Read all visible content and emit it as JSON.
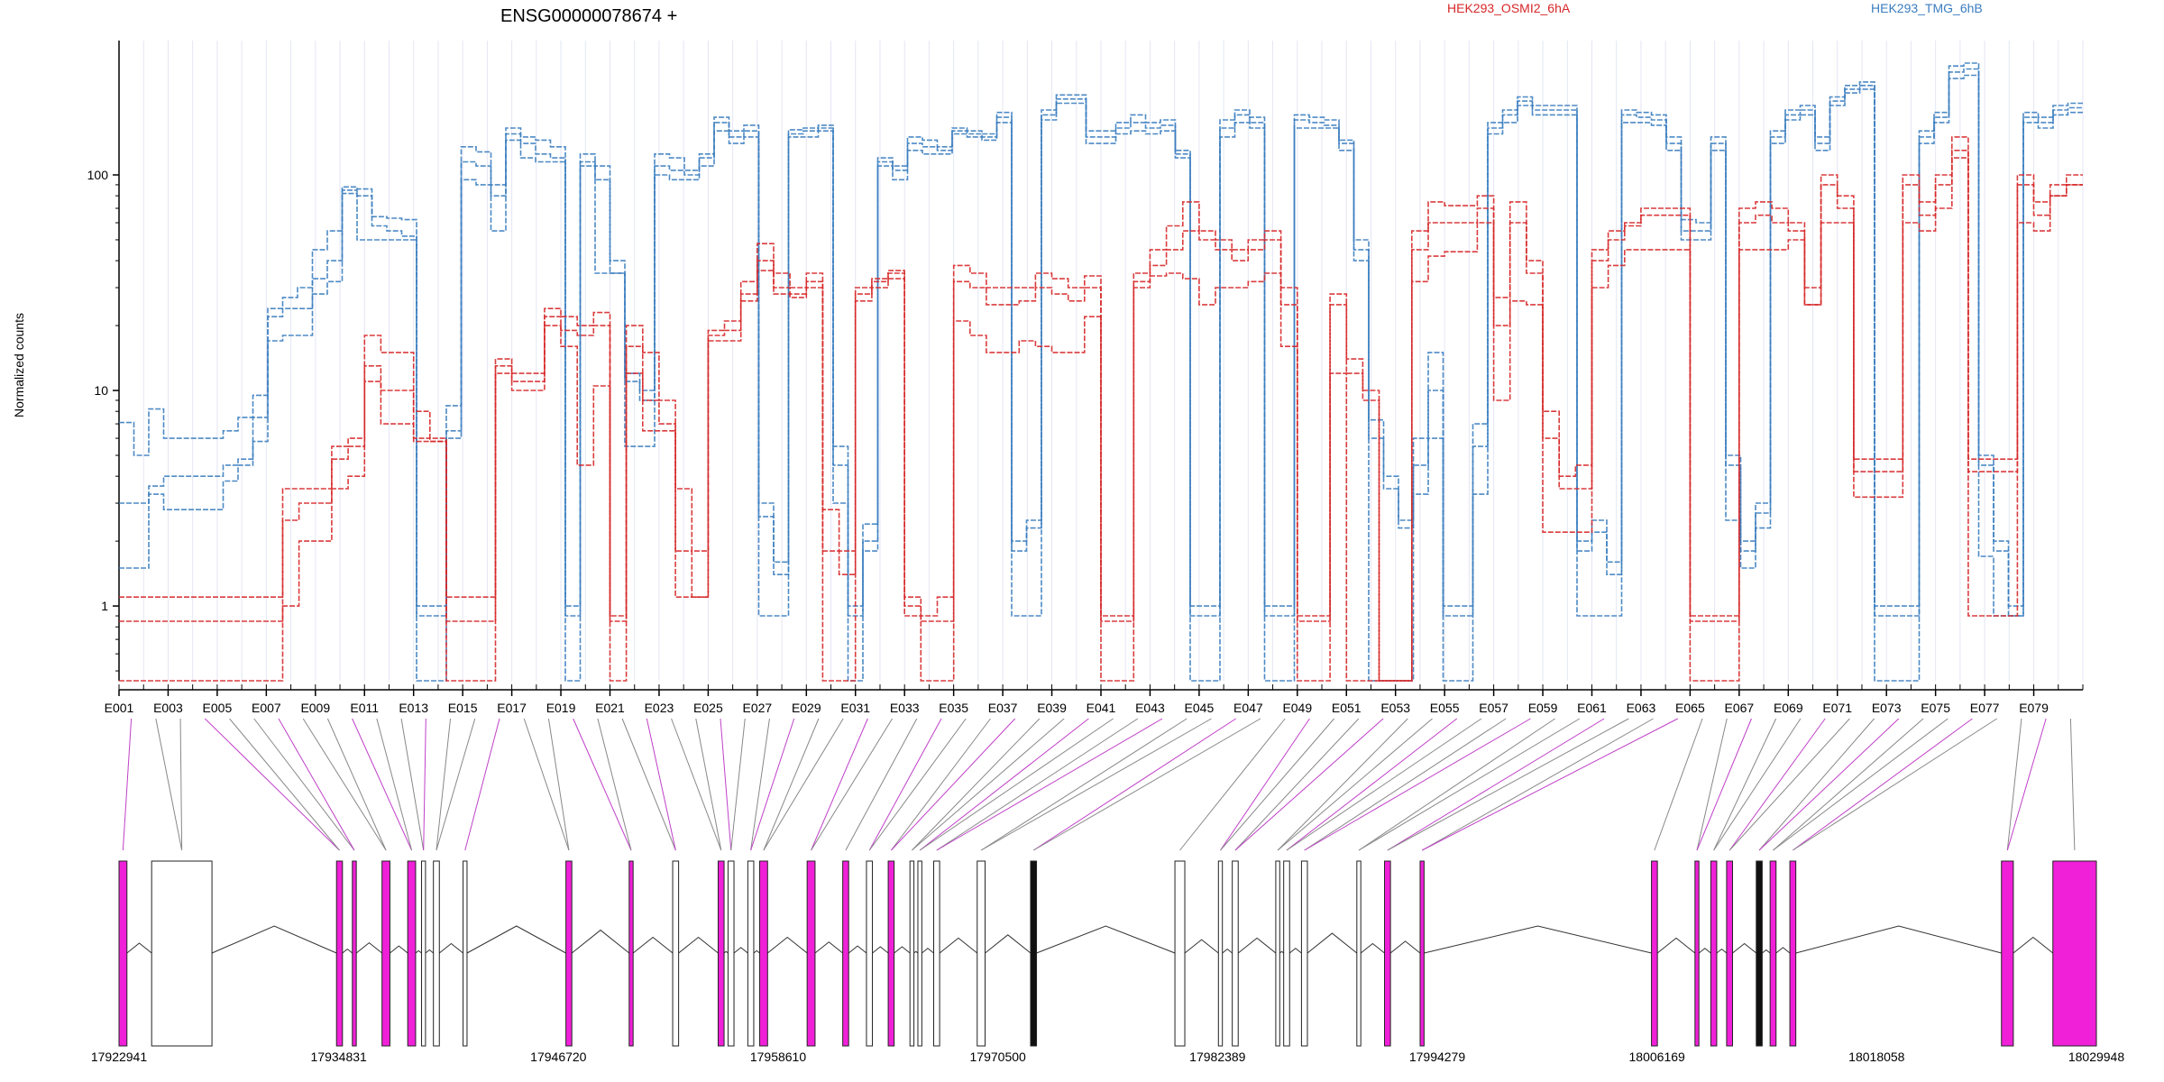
{
  "chart_data": {
    "type": "line",
    "title": "ENSG00000078674 +",
    "ylabel": "Normalized counts",
    "yscale": "log",
    "ylim": [
      0.45,
      420
    ],
    "yticks": [
      1,
      10,
      100
    ],
    "ytick_labels": [
      "1",
      "10",
      "100"
    ],
    "exon_labels": [
      "E001",
      "E003",
      "E005",
      "E007",
      "E009",
      "E011",
      "E013",
      "E015",
      "E017",
      "E019",
      "E021",
      "E023",
      "E025",
      "E027",
      "E029",
      "E031",
      "E033",
      "E035",
      "E037",
      "E039",
      "E041",
      "E043",
      "E045",
      "E047",
      "E049",
      "E051",
      "E053",
      "E055",
      "E057",
      "E059",
      "E061",
      "E063",
      "E065",
      "E067",
      "E069",
      "E071",
      "E073",
      "E075",
      "E077",
      "E079"
    ],
    "genomic_ticks": [
      "17922941",
      "17934831",
      "17946720",
      "17958610",
      "17970500",
      "17982389",
      "17994279",
      "18006169",
      "18018058",
      "18029948"
    ],
    "legend": [
      {
        "name": "HEK293_OSMI2_6hA",
        "color": "#d62728"
      },
      {
        "name": "HEK293_TMG_6hB",
        "color": "#3a7dbf"
      }
    ],
    "series": [
      {
        "group": "HEK293_TMG_6hB",
        "color": "#3a7dbf",
        "values": [
          7.1,
          5,
          8.2,
          6,
          6,
          6,
          6,
          6.5,
          7.5,
          9.5,
          24,
          27,
          30,
          45,
          55,
          88,
          86,
          64,
          63,
          62,
          1,
          1,
          8.5,
          135,
          128,
          90,
          165,
          150,
          145,
          135,
          1,
          125,
          110,
          40,
          12,
          10,
          125,
          120,
          105,
          125,
          185,
          160,
          170,
          3,
          1.6,
          162,
          165,
          170,
          5.5,
          1,
          2.4,
          120,
          110,
          150,
          145,
          135,
          165,
          160,
          155,
          195,
          2,
          2.5,
          200,
          235,
          235,
          160,
          160,
          175,
          190,
          175,
          180,
          130,
          1,
          1,
          180,
          200,
          185,
          1,
          1,
          190,
          185,
          180,
          145,
          50,
          7.3,
          4,
          2.5,
          6,
          15,
          1,
          1,
          7,
          175,
          200,
          230,
          210,
          210,
          210,
          2,
          2.5,
          1.6,
          200,
          195,
          190,
          150,
          62,
          60,
          150,
          5,
          2,
          3,
          160,
          200,
          210,
          150,
          230,
          260,
          270,
          1,
          1,
          1,
          160,
          195,
          320,
          330,
          5,
          2,
          1,
          195,
          185,
          210,
          215
        ]
      },
      {
        "group": "HEK293_TMG_6hB",
        "color": "#3a7dbf",
        "values": [
          3,
          3,
          3.6,
          4,
          4,
          4,
          4,
          4.5,
          4.8,
          7.5,
          22,
          24,
          24,
          33,
          40,
          85,
          80,
          58,
          55,
          52,
          0.9,
          0.9,
          6.5,
          115,
          110,
          80,
          155,
          140,
          125,
          120,
          0.9,
          115,
          95,
          35,
          11,
          9,
          110,
          105,
          100,
          120,
          175,
          150,
          160,
          2.6,
          1.4,
          155,
          160,
          165,
          4.5,
          0.9,
          2,
          115,
          105,
          140,
          135,
          130,
          160,
          155,
          150,
          185,
          1.8,
          2.3,
          190,
          225,
          225,
          150,
          150,
          165,
          175,
          165,
          170,
          125,
          0.9,
          0.9,
          165,
          190,
          175,
          0.9,
          0.9,
          180,
          175,
          170,
          140,
          45,
          6,
          3.5,
          2.3,
          4.5,
          10,
          0.9,
          0.9,
          5.5,
          165,
          190,
          220,
          200,
          200,
          200,
          1.8,
          2.2,
          1.4,
          190,
          185,
          180,
          140,
          55,
          55,
          140,
          4.5,
          1.8,
          2.7,
          150,
          190,
          200,
          140,
          220,
          250,
          260,
          0.9,
          0.9,
          0.9,
          150,
          185,
          300,
          310,
          4.5,
          1.8,
          0.9,
          185,
          175,
          200,
          205
        ]
      },
      {
        "group": "HEK293_TMG_6hB",
        "color": "#3a7dbf",
        "values": [
          1.5,
          1.5,
          3.3,
          2.8,
          2.8,
          2.8,
          2.8,
          3.8,
          4.5,
          5.8,
          17,
          18,
          18,
          28,
          32,
          82,
          50,
          50,
          50,
          50,
          0.45,
          0.45,
          6,
          95,
          90,
          55,
          145,
          120,
          115,
          115,
          0.45,
          110,
          35,
          35,
          5.5,
          5.5,
          100,
          95,
          95,
          110,
          160,
          140,
          150,
          0.9,
          0.9,
          150,
          150,
          160,
          3,
          0.45,
          1.8,
          110,
          95,
          130,
          125,
          125,
          155,
          150,
          145,
          175,
          0.9,
          0.9,
          180,
          215,
          215,
          140,
          140,
          155,
          160,
          155,
          160,
          120,
          0.45,
          0.45,
          150,
          175,
          165,
          0.45,
          0.45,
          165,
          165,
          165,
          130,
          40,
          0.45,
          0.45,
          0.45,
          3.3,
          6,
          0.45,
          0.45,
          3.3,
          155,
          175,
          210,
          190,
          190,
          190,
          0.9,
          0.9,
          0.9,
          175,
          175,
          170,
          130,
          50,
          50,
          130,
          2.5,
          1.5,
          2.3,
          140,
          180,
          190,
          130,
          210,
          240,
          250,
          0.45,
          0.45,
          0.45,
          140,
          175,
          280,
          290,
          1.7,
          0.9,
          0.9,
          175,
          165,
          190,
          195
        ]
      },
      {
        "group": "HEK293_OSMI2_6hA",
        "color": "#d62728",
        "values": [
          1.1,
          1.1,
          1.1,
          1.1,
          1.1,
          1.1,
          1.1,
          1.1,
          1.1,
          1.1,
          3.5,
          3.5,
          3.5,
          5.5,
          6,
          18,
          15,
          15,
          8,
          6,
          1.1,
          1.1,
          1.1,
          14,
          12,
          12,
          24,
          22,
          20,
          23,
          0.9,
          20,
          15,
          9,
          3.5,
          1.8,
          19,
          21,
          32,
          48,
          35,
          30,
          35,
          2.8,
          1.8,
          30,
          33,
          36,
          1.1,
          0.9,
          1.1,
          38,
          35,
          30,
          30,
          30,
          35,
          33,
          30,
          34,
          0.9,
          0.9,
          35,
          45,
          58,
          75,
          55,
          50,
          45,
          50,
          55,
          30,
          0.9,
          0.9,
          28,
          14,
          10,
          0.45,
          0.45,
          55,
          75,
          72,
          72,
          80,
          27,
          75,
          40,
          8,
          4,
          4.5,
          45,
          55,
          60,
          70,
          70,
          70,
          0.9,
          0.9,
          0.9,
          70,
          75,
          70,
          60,
          30,
          100,
          80,
          4.8,
          4.8,
          4.8,
          100,
          75,
          100,
          150,
          4.8,
          4.8,
          4.8,
          100,
          75,
          90,
          100
        ]
      },
      {
        "group": "HEK293_OSMI2_6hA",
        "color": "#d62728",
        "values": [
          0.85,
          0.85,
          0.85,
          0.85,
          0.85,
          0.85,
          0.85,
          0.85,
          0.85,
          0.85,
          2.5,
          3,
          3,
          4.8,
          5.5,
          13,
          10,
          10,
          6,
          5.8,
          0.85,
          0.85,
          0.85,
          13,
          11,
          11,
          22,
          19,
          18,
          20,
          0.85,
          16,
          9,
          7,
          1.8,
          1.1,
          18,
          19,
          28,
          40,
          30,
          28,
          32,
          1.8,
          1.4,
          28,
          32,
          35,
          1,
          0.85,
          0.85,
          32,
          30,
          25,
          25,
          26,
          30,
          28,
          26,
          30,
          0.85,
          0.85,
          32,
          38,
          45,
          55,
          50,
          45,
          40,
          45,
          50,
          25,
          0.85,
          0.85,
          25,
          12,
          9,
          0.45,
          0.45,
          45,
          60,
          60,
          60,
          70,
          20,
          60,
          35,
          6,
          3.5,
          3.5,
          40,
          50,
          58,
          65,
          65,
          65,
          0.85,
          0.85,
          0.85,
          60,
          65,
          60,
          55,
          25,
          90,
          70,
          4.2,
          4.2,
          4.2,
          90,
          65,
          90,
          130,
          4.2,
          4.2,
          4.2,
          90,
          65,
          80,
          90
        ]
      },
      {
        "group": "HEK293_OSMI2_6hA",
        "color": "#d62728",
        "values": [
          0.45,
          0.45,
          0.45,
          0.45,
          0.45,
          0.45,
          0.45,
          0.45,
          0.45,
          0.45,
          1,
          2,
          2,
          3.5,
          4,
          11,
          7,
          7,
          5.8,
          5.8,
          0.45,
          0.45,
          0.45,
          12,
          10,
          10,
          20,
          16,
          4.5,
          10.5,
          0.45,
          12,
          6.5,
          6.5,
          1.1,
          1.1,
          17,
          17,
          26,
          36,
          28,
          27,
          30,
          0.45,
          0.45,
          26,
          30,
          33,
          0.9,
          0.45,
          0.45,
          21,
          18,
          15,
          15,
          17,
          16,
          15,
          15,
          22,
          0.45,
          0.45,
          30,
          34,
          35,
          33,
          25,
          30,
          30,
          32,
          35,
          16,
          0.45,
          0.45,
          12,
          0.45,
          0.45,
          0.45,
          0.45,
          32,
          42,
          44,
          44,
          60,
          9,
          26,
          25,
          2.2,
          2.2,
          2.2,
          30,
          38,
          45,
          45,
          45,
          45,
          0.45,
          0.45,
          0.45,
          45,
          45,
          45,
          50,
          25,
          60,
          60,
          3.2,
          3.2,
          3.2,
          60,
          55,
          70,
          120,
          0.9,
          0.9,
          0.9,
          60,
          55,
          80,
          90
        ]
      }
    ]
  }
}
